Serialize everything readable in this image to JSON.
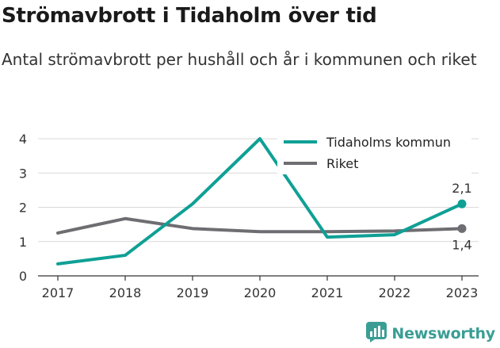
{
  "title": "Strömavbrott i Tidaholm över tid",
  "subtitle": "Antal strömavbrott per hushåll och år i kommunen och riket",
  "brand": {
    "name": "Newsworthy",
    "logo_icon": "bar-chart-logo-icon",
    "color": "#3a9e94"
  },
  "chart_data": {
    "type": "line",
    "x": [
      "2017",
      "2018",
      "2019",
      "2020",
      "2021",
      "2022",
      "2023"
    ],
    "ylim": [
      0,
      4
    ],
    "yticks": [
      "0",
      "1",
      "2",
      "3",
      "4"
    ],
    "grid": true,
    "legend_position": "top-right",
    "series": [
      {
        "name": "Tidaholms kommun",
        "color": "#0fa095",
        "values": [
          0.35,
          0.6,
          2.1,
          4.0,
          1.13,
          1.2,
          2.1
        ],
        "end_label": "2,1"
      },
      {
        "name": "Riket",
        "color": "#6d6d72",
        "values": [
          1.25,
          1.67,
          1.38,
          1.29,
          1.29,
          1.31,
          1.38
        ],
        "end_label": "1,4"
      }
    ]
  }
}
